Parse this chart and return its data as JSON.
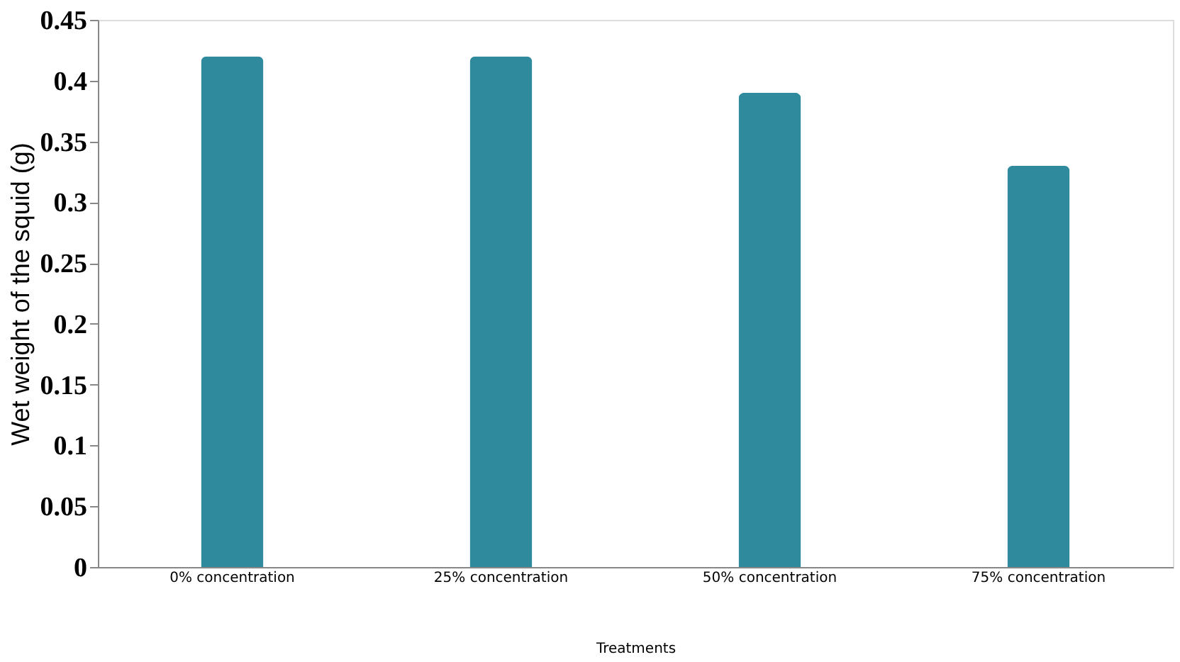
{
  "chart_data": {
    "type": "bar",
    "categories": [
      "0% concentration",
      "25% concentration",
      "50% concentration",
      "75% concentration"
    ],
    "values": [
      0.42,
      0.42,
      0.39,
      0.33
    ],
    "color": "#2e8a9c",
    "xlabel": "Treatments",
    "ylabel": "Wet weight of the squid (g)",
    "ylim": [
      0,
      0.45
    ],
    "yticks": [
      0,
      0.05,
      0.1,
      0.15,
      0.2,
      0.25,
      0.3,
      0.35,
      0.4,
      0.45
    ],
    "grid": false
  }
}
